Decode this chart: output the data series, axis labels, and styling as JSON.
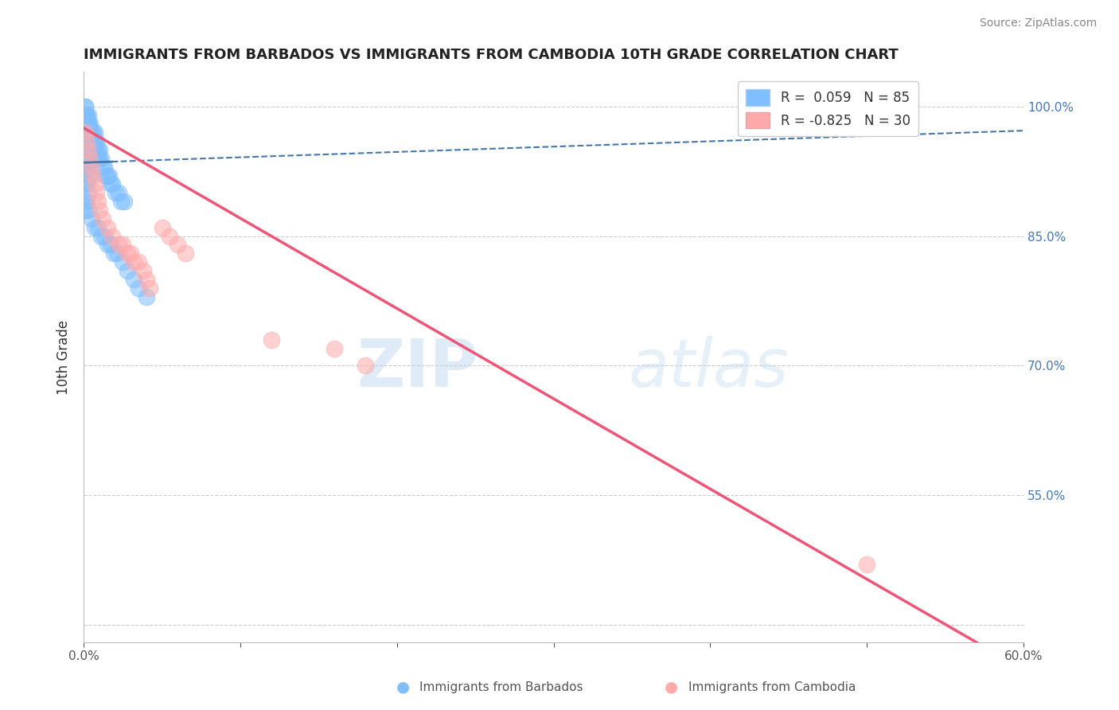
{
  "title": "IMMIGRANTS FROM BARBADOS VS IMMIGRANTS FROM CAMBODIA 10TH GRADE CORRELATION CHART",
  "source": "Source: ZipAtlas.com",
  "ylabel": "10th Grade",
  "xlim": [
    0.0,
    0.6
  ],
  "ylim": [
    0.38,
    1.04
  ],
  "x_ticks": [
    0.0,
    0.1,
    0.2,
    0.3,
    0.4,
    0.5,
    0.6
  ],
  "x_tick_labels": [
    "0.0%",
    "",
    "",
    "",
    "",
    "",
    "60.0%"
  ],
  "y_ticks": [
    0.4,
    0.55,
    0.7,
    0.85,
    1.0
  ],
  "y_tick_labels_right": [
    "",
    "55.0%",
    "70.0%",
    "85.0%",
    "100.0%"
  ],
  "legend_r_blue": "0.059",
  "legend_n_blue": "85",
  "legend_r_pink": "-0.825",
  "legend_n_pink": "30",
  "blue_color": "#7fbfff",
  "pink_color": "#ffaaaa",
  "blue_line_color": "#4477aa",
  "pink_line_color": "#ee5577",
  "watermark": "ZIPatlas",
  "background_color": "#ffffff",
  "grid_color": "#cccccc",
  "blue_x": [
    0.001,
    0.001,
    0.001,
    0.001,
    0.001,
    0.001,
    0.001,
    0.001,
    0.002,
    0.002,
    0.002,
    0.002,
    0.002,
    0.002,
    0.002,
    0.003,
    0.003,
    0.003,
    0.003,
    0.003,
    0.003,
    0.004,
    0.004,
    0.004,
    0.004,
    0.004,
    0.005,
    0.005,
    0.005,
    0.005,
    0.006,
    0.006,
    0.006,
    0.007,
    0.007,
    0.007,
    0.008,
    0.008,
    0.008,
    0.009,
    0.009,
    0.01,
    0.01,
    0.011,
    0.012,
    0.013,
    0.014,
    0.015,
    0.016,
    0.017,
    0.018,
    0.02,
    0.022,
    0.024,
    0.026,
    0.001,
    0.001,
    0.002,
    0.002,
    0.003,
    0.001,
    0.002,
    0.003,
    0.004,
    0.001,
    0.002,
    0.003,
    0.001,
    0.002,
    0.001,
    0.003,
    0.005,
    0.007,
    0.009,
    0.011,
    0.013,
    0.015,
    0.017,
    0.019,
    0.021,
    0.025,
    0.028,
    0.032,
    0.035,
    0.04
  ],
  "blue_y": [
    1.0,
    0.99,
    0.98,
    0.97,
    0.96,
    0.95,
    0.94,
    0.93,
    0.99,
    0.98,
    0.97,
    0.96,
    0.95,
    0.94,
    0.93,
    0.99,
    0.98,
    0.97,
    0.96,
    0.95,
    0.94,
    0.98,
    0.97,
    0.96,
    0.95,
    0.94,
    0.97,
    0.96,
    0.95,
    0.94,
    0.97,
    0.96,
    0.95,
    0.97,
    0.96,
    0.95,
    0.96,
    0.95,
    0.94,
    0.95,
    0.94,
    0.95,
    0.94,
    0.94,
    0.93,
    0.93,
    0.92,
    0.92,
    0.92,
    0.91,
    0.91,
    0.9,
    0.9,
    0.89,
    0.89,
    1.0,
    0.99,
    0.99,
    0.98,
    0.98,
    0.93,
    0.93,
    0.92,
    0.92,
    0.91,
    0.91,
    0.9,
    0.89,
    0.89,
    0.88,
    0.88,
    0.87,
    0.86,
    0.86,
    0.85,
    0.85,
    0.84,
    0.84,
    0.83,
    0.83,
    0.82,
    0.81,
    0.8,
    0.79,
    0.78
  ],
  "pink_x": [
    0.001,
    0.002,
    0.003,
    0.004,
    0.005,
    0.006,
    0.007,
    0.008,
    0.009,
    0.01,
    0.012,
    0.015,
    0.018,
    0.022,
    0.025,
    0.028,
    0.03,
    0.032,
    0.035,
    0.038,
    0.04,
    0.042,
    0.05,
    0.055,
    0.06,
    0.065,
    0.12,
    0.16,
    0.18,
    0.5
  ],
  "pink_y": [
    0.97,
    0.96,
    0.95,
    0.94,
    0.93,
    0.92,
    0.91,
    0.9,
    0.89,
    0.88,
    0.87,
    0.86,
    0.85,
    0.84,
    0.84,
    0.83,
    0.83,
    0.82,
    0.82,
    0.81,
    0.8,
    0.79,
    0.86,
    0.85,
    0.84,
    0.83,
    0.73,
    0.72,
    0.7,
    0.47
  ],
  "blue_line_x": [
    0.0,
    0.6
  ],
  "blue_line_y": [
    0.935,
    0.972
  ],
  "pink_line_x": [
    0.0,
    0.57
  ],
  "pink_line_y": [
    0.975,
    0.38
  ]
}
